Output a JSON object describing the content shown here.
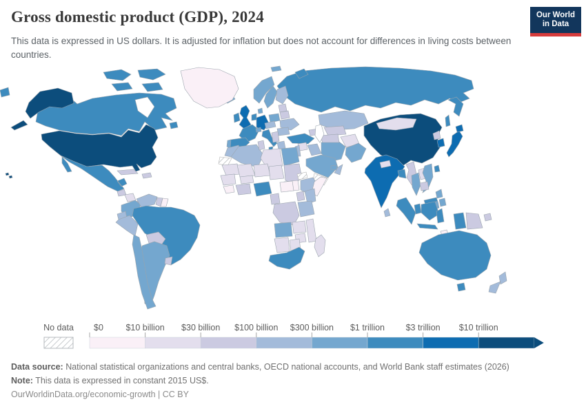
{
  "header": {
    "title": "Gross domestic product (GDP), 2024",
    "subtitle": "This data is expressed in US dollars. It is adjusted for inflation but does not account for differences in living costs between countries.",
    "logo": {
      "line1": "Our World",
      "line2": "in Data",
      "bg_color": "#12365c",
      "stripe_color": "#d73c3c",
      "text_color": "#ffffff"
    }
  },
  "chart_data": {
    "type": "choropleth-map",
    "title": "Gross domestic product (GDP), 2024",
    "year": "2024",
    "unit": "US dollars, constant 2015 US$",
    "legend": {
      "no_data_label": "No data",
      "bins": [
        {
          "label": "$0",
          "color": "#faf0f7"
        },
        {
          "label": "$10 billion",
          "color": "#e3deed"
        },
        {
          "label": "$30 billion",
          "color": "#cbcae1"
        },
        {
          "label": "$100 billion",
          "color": "#a3bbda"
        },
        {
          "label": "$300 billion",
          "color": "#74a7cf"
        },
        {
          "label": "$1 trillion",
          "color": "#3d8bbe"
        },
        {
          "label": "$3 trillion",
          "color": "#0d6cb1"
        },
        {
          "label": "$10 trillion",
          "color": "#0c4d7c"
        }
      ],
      "border_color": "#c9d2da",
      "tick_color": "#a5a5a5",
      "label_color": "#5b5b5b",
      "no_data_stroke": "#b4b9bd"
    },
    "map_style": {
      "country_stroke": "#9aa4ad",
      "sea_color": "#ffffff"
    },
    "regions": {
      "greenland": 0,
      "iceland": 4,
      "canada": 5,
      "canada-arctic": 5,
      "newfoundland": 5,
      "united-states": 7,
      "mexico": 5,
      "guatemala": 2,
      "honduras-nicaragua": 1,
      "costa-rica-panama": 2,
      "cuba": 2,
      "hispaniola": 2,
      "colombia": 4,
      "venezuela": 3,
      "guyana": 2,
      "suriname": 0,
      "ecuador": 3,
      "peru": 3,
      "brazil": 5,
      "bolivia": 2,
      "paraguay": 2,
      "chile": 4,
      "argentina": 4,
      "uruguay": 2,
      "united-kingdom": 6,
      "ireland": 5,
      "norway": 4,
      "sweden": 4,
      "finland": 3,
      "denmark": 4,
      "baltics": 2,
      "germany": 6,
      "benelux": 5,
      "france": 5,
      "spain": 5,
      "portugal": 4,
      "italy": 5,
      "switzerland": 4,
      "austria-czechia": 3,
      "poland": 4,
      "belarus": 2,
      "ukraine": 3,
      "romania": 3,
      "balkans": 2,
      "greece": 3,
      "russia": 5,
      "turkey": 5,
      "caucasus": 2,
      "syria": 1,
      "iraq": 3,
      "levant": 3,
      "saudi-arabia": 4,
      "yemen": "no_data",
      "oman": 3,
      "uae": 4,
      "iran": 4,
      "kazakhstan": 3,
      "uzbekistan": 2,
      "turkmenistan": 2,
      "afghanistan": 1,
      "pakistan": 4,
      "india": 6,
      "nepal": 1,
      "bangladesh": 5,
      "sri-lanka": 3,
      "myanmar": 2,
      "china": 7,
      "mongolia": 1,
      "north-korea": 2,
      "south-korea": 6,
      "japan": 6,
      "taiwan": 5,
      "thailand": 4,
      "laos": 1,
      "vietnam": 4,
      "cambodia": 2,
      "malaysia": 5,
      "philippines": 4,
      "indonesia": 5,
      "papua-new-guinea": 2,
      "timor-leste": 0,
      "australia": 5,
      "new-zealand": 3,
      "morocco": 3,
      "western-sahara": "no_data",
      "algeria": 3,
      "tunisia": 2,
      "libya": 1,
      "egypt": 4,
      "mauritania": 1,
      "mali": 1,
      "niger": 1,
      "chad": 1,
      "sudan": 2,
      "eritrea": "no_data",
      "south-sudan": 0,
      "ethiopia": 3,
      "somalia": 0,
      "senegal-guinea": 1,
      "sierra-leone-liberia": 0,
      "cote-divoire-ghana": 2,
      "burkina-faso": 1,
      "nigeria": 5,
      "cameroon": 2,
      "central-african-republic": 0,
      "drc": 2,
      "uganda": 2,
      "kenya": 3,
      "tanzania": 3,
      "angola": 4,
      "zambia": 1,
      "mozambique": 1,
      "zimbabwe": 1,
      "namibia": 1,
      "botswana": 1,
      "south-africa": 5,
      "madagascar": 1
    }
  },
  "footer": {
    "source_label": "Data source:",
    "source_text": " National statistical organizations and central banks, OECD national accounts, and World Bank staff estimates (2026)",
    "note_label": "Note:",
    "note_text": " This data is expressed in constant 2015 US$.",
    "url_line": "OurWorldinData.org/economic-growth | CC BY"
  }
}
